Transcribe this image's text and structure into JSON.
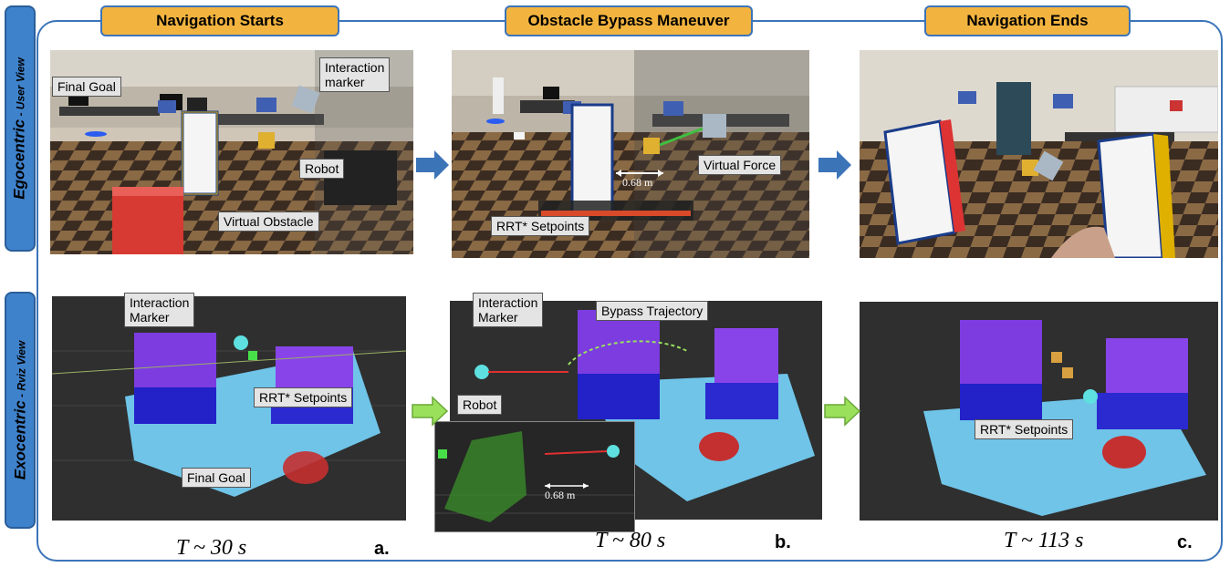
{
  "headers": {
    "start": "Navigation Starts",
    "bypass": "Obstacle Bypass Maneuver",
    "end": "Navigation Ends"
  },
  "rows": {
    "egocentric": {
      "main": "Egocentric",
      "sub": " - User View"
    },
    "exocentric": {
      "main": "Exocentric",
      "sub": " - Rviz View"
    }
  },
  "callouts": {
    "a_final_goal": "Final Goal",
    "a_interaction_marker_1": "Interaction",
    "a_interaction_marker_2": "marker",
    "a_robot": "Robot",
    "a_virtual_obstacle": "Virtual Obstacle",
    "b_virtual_force": "Virtual Force",
    "b_rrt_setpoints": "RRT* Setpoints",
    "b_distance": "0.68 m",
    "a_rviz_interaction_1": "Interaction",
    "a_rviz_interaction_2": "Marker",
    "a_rviz_rrt": "RRT* Setpoints",
    "a_rviz_final_goal": "Final Goal",
    "b_rviz_interaction_1": "Interaction",
    "b_rviz_interaction_2": "Marker",
    "b_rviz_bypass": "Bypass Trajectory",
    "b_rviz_robot": "Robot",
    "b_rviz_distance": "0.68 m",
    "c_rviz_rrt": "RRT* Setpoints"
  },
  "times": {
    "a": "T ~ 30 s",
    "b": "T ~ 80 s",
    "c": "T ~ 113 s"
  },
  "panel_labels": {
    "a": "a.",
    "b": "b.",
    "c": "c."
  },
  "colors": {
    "frame": "#3c74b8",
    "header_fill": "#f2b43f",
    "side_fill": "#3f82cc",
    "arrow_blue": "#3c74b8",
    "arrow_green": "#9be05a"
  }
}
